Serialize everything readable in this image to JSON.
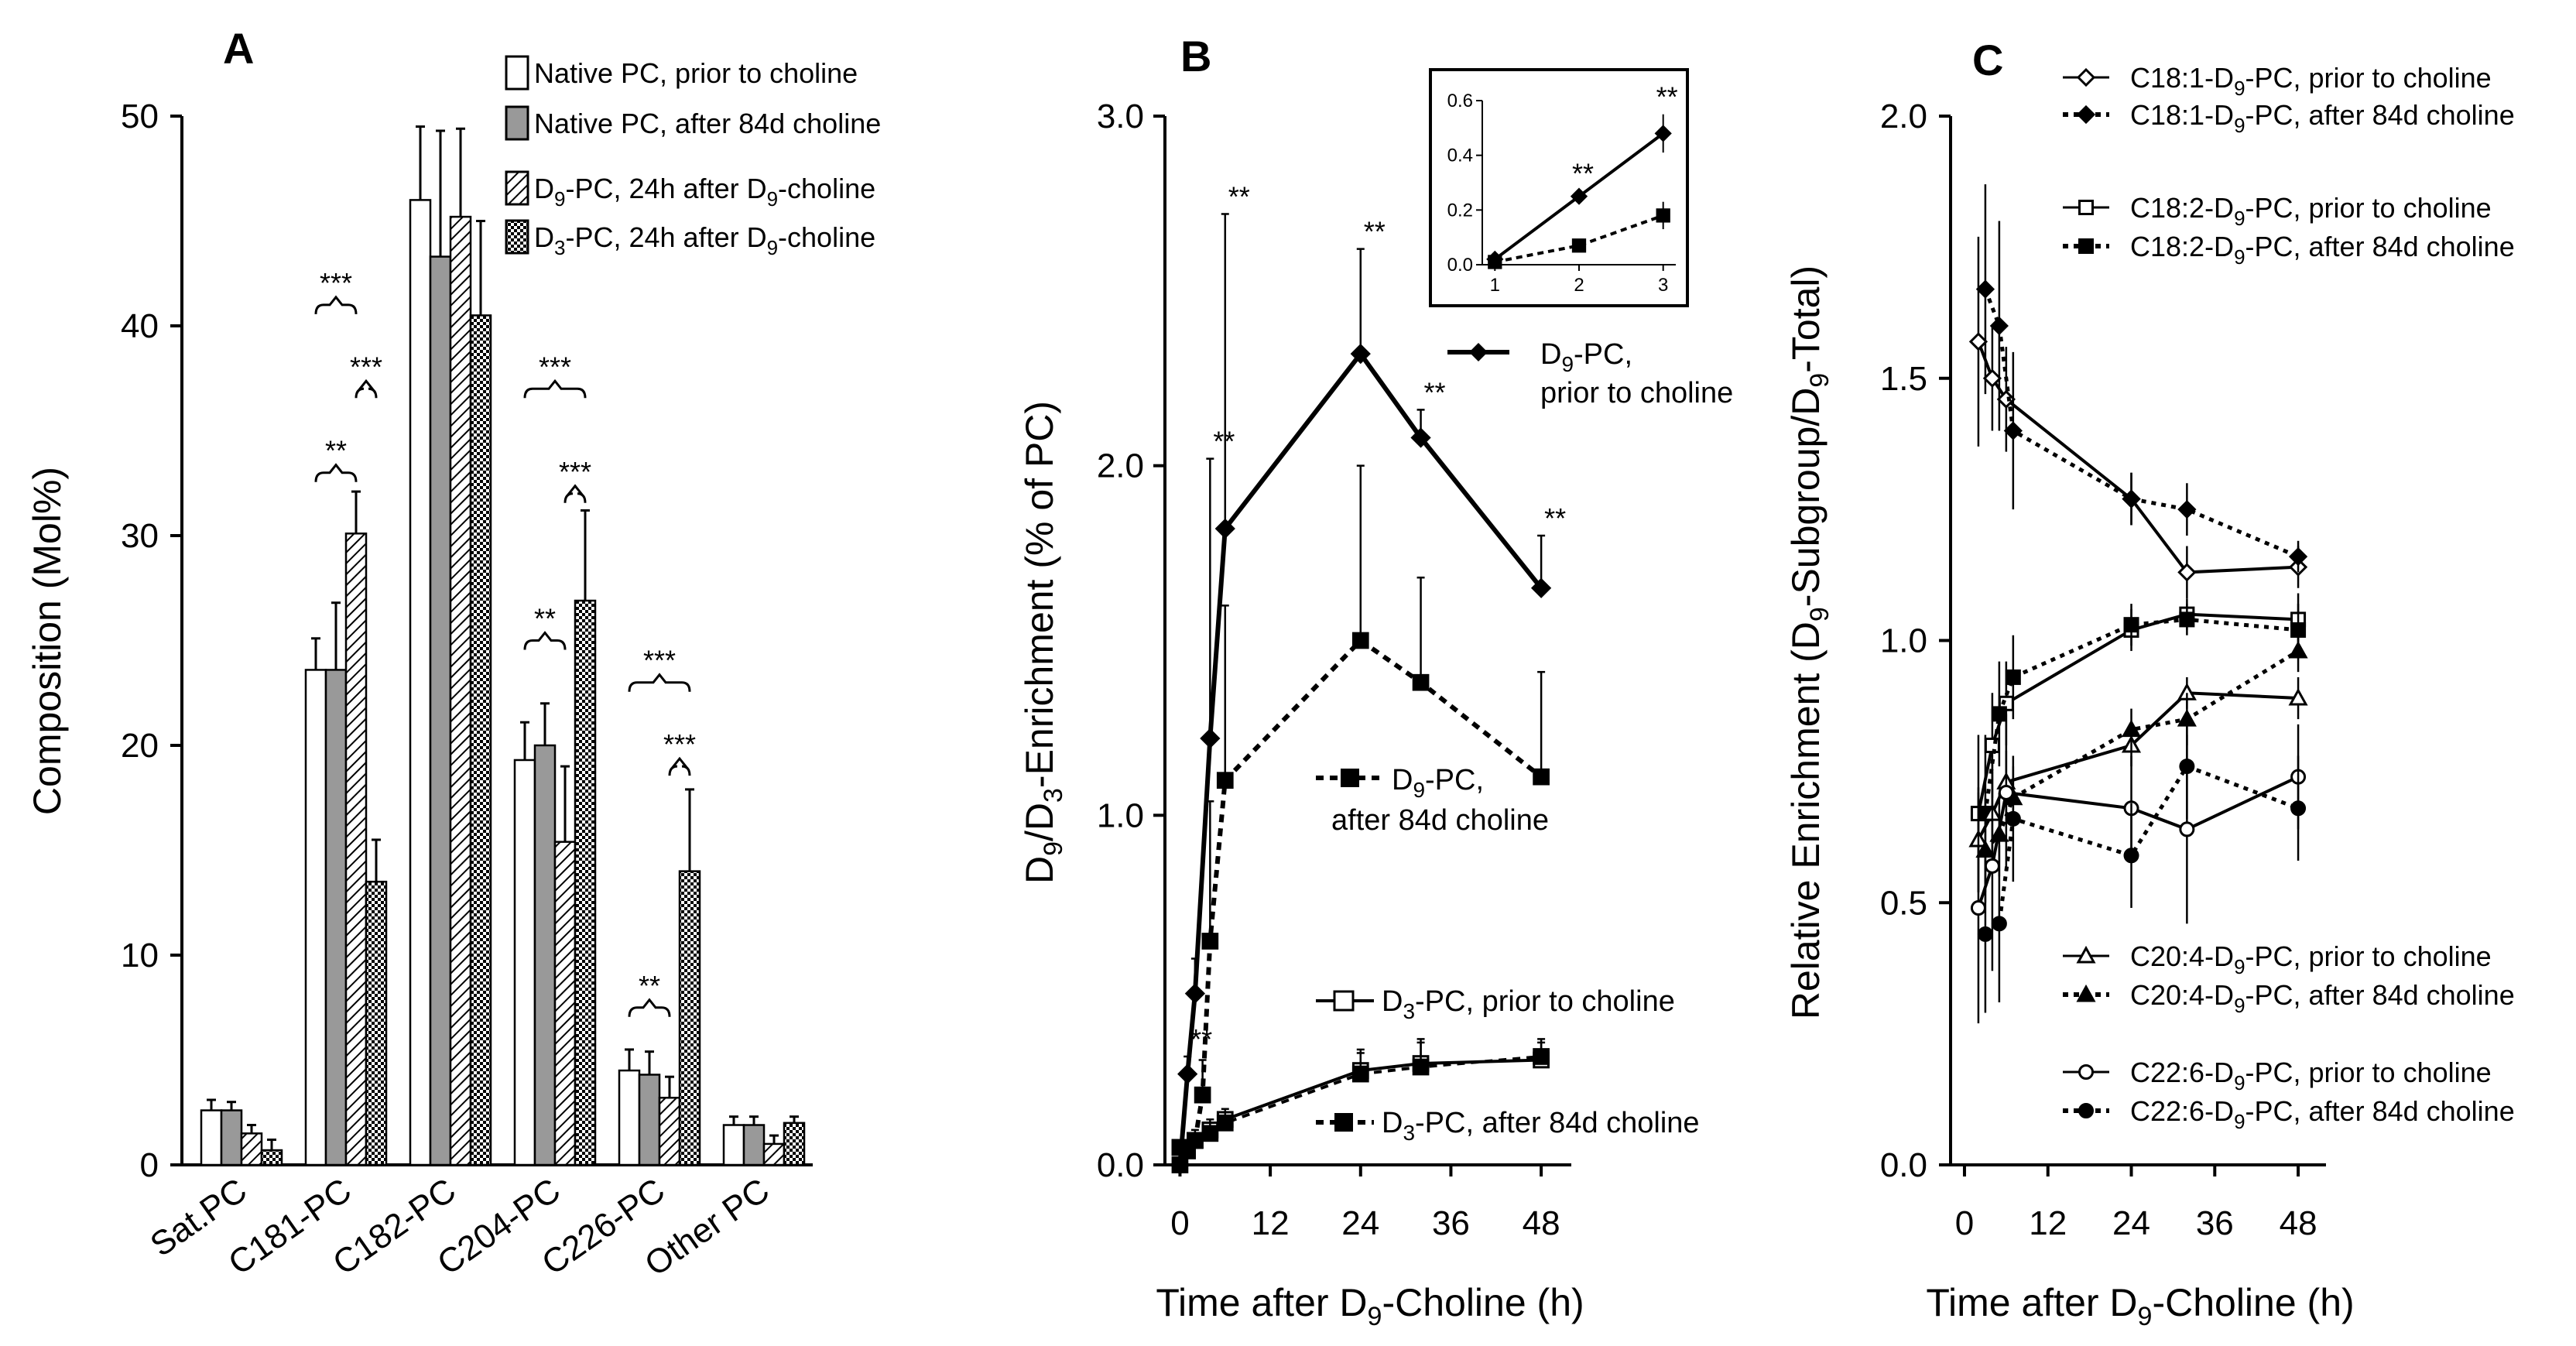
{
  "chart_data": [
    {
      "panel": "A",
      "type": "bar",
      "ylabel": "Composition (Mol%)",
      "ylim": [
        0,
        50
      ],
      "yticks": [
        0,
        10,
        20,
        30,
        40,
        50
      ],
      "categories": [
        "Sat.PC",
        "C181-PC",
        "C182-PC",
        "C204-PC",
        "C226-PC",
        "Other PC"
      ],
      "series": [
        {
          "name": "Native PC, prior to choline",
          "fill": "white",
          "values": [
            2.6,
            23.6,
            46.0,
            19.3,
            4.5,
            1.9
          ],
          "errors": [
            0.5,
            1.5,
            3.5,
            1.8,
            1.0,
            0.4
          ]
        },
        {
          "name": "Native PC, after 84d choline",
          "fill": "gray",
          "values": [
            2.6,
            23.6,
            43.3,
            20.0,
            4.3,
            1.9
          ],
          "errors": [
            0.4,
            3.2,
            6.0,
            2.0,
            1.1,
            0.4
          ]
        },
        {
          "name": "D9-PC, 24h after D9-choline",
          "fill": "hatch",
          "values": [
            1.5,
            30.1,
            45.2,
            15.4,
            3.2,
            1.0
          ],
          "errors": [
            0.4,
            2.0,
            4.2,
            3.6,
            1.0,
            0.4
          ]
        },
        {
          "name": "D3-PC, 24h after D9-choline",
          "fill": "check",
          "values": [
            0.7,
            13.5,
            40.5,
            26.9,
            14.0,
            2.0
          ],
          "errors": [
            0.5,
            2.0,
            4.5,
            4.3,
            3.9,
            0.3
          ]
        }
      ],
      "significance": [
        {
          "category": "C181-PC",
          "pair": [
            0,
            2
          ],
          "label": "***",
          "level": 41
        },
        {
          "category": "C181-PC",
          "pair": [
            2,
            3
          ],
          "label": "***",
          "level": 37
        },
        {
          "category": "C181-PC",
          "pair": [
            0,
            2
          ],
          "label": "**",
          "level": 33
        },
        {
          "category": "C204-PC",
          "pair": [
            0,
            3
          ],
          "label": "***",
          "level": 37
        },
        {
          "category": "C204-PC",
          "pair": [
            2,
            3
          ],
          "label": "***",
          "level": 32
        },
        {
          "category": "C204-PC",
          "pair": [
            0,
            2
          ],
          "label": "**",
          "level": 25
        },
        {
          "category": "C226-PC",
          "pair": [
            0,
            3
          ],
          "label": "***",
          "level": 23
        },
        {
          "category": "C226-PC",
          "pair": [
            2,
            3
          ],
          "label": "***",
          "level": 19
        },
        {
          "category": "C226-PC",
          "pair": [
            0,
            2
          ],
          "label": "**",
          "level": 7.5
        }
      ]
    },
    {
      "panel": "B",
      "type": "line",
      "xlabel": "Time after D9-Choline (h)",
      "ylabel": "D9/D3-Enrichment (% of PC)",
      "xlim": [
        -2,
        52
      ],
      "ylim": [
        0,
        3.0
      ],
      "xticks": [
        0,
        12,
        24,
        36,
        48
      ],
      "yticks": [
        "0.0",
        "1.0",
        "2.0",
        "3.0"
      ],
      "series": [
        {
          "name": "D9-PC, prior to choline",
          "marker": "diamond",
          "filled": true,
          "dash": false,
          "lineWidth": 6,
          "x": [
            0,
            1,
            2,
            4,
            6,
            24,
            32,
            48
          ],
          "y": [
            0.0,
            0.26,
            0.49,
            1.22,
            1.82,
            2.32,
            2.08,
            1.65
          ],
          "err": [
            0.0,
            0.05,
            0.1,
            0.8,
            0.9,
            0.3,
            0.08,
            0.15
          ],
          "sig": [
            "",
            "**",
            "",
            "**",
            "**",
            "**",
            "**",
            "**"
          ]
        },
        {
          "name": "D9-PC, after 84d choline",
          "marker": "square",
          "filled": true,
          "dash": true,
          "lineWidth": 6,
          "x": [
            0,
            1,
            2,
            3,
            4,
            6,
            24,
            32,
            48
          ],
          "y": [
            0.0,
            0.04,
            0.07,
            0.2,
            0.64,
            1.1,
            1.5,
            1.38,
            1.11
          ],
          "err": [
            0.0,
            0.02,
            0.03,
            0.1,
            0.4,
            0.5,
            0.5,
            0.3,
            0.3
          ]
        },
        {
          "name": "D3-PC, prior to choline",
          "marker": "square",
          "filled": false,
          "dash": false,
          "lineWidth": 4,
          "x": [
            0,
            2,
            4,
            6,
            24,
            32,
            48
          ],
          "y": [
            0.05,
            0.07,
            0.1,
            0.13,
            0.27,
            0.29,
            0.3
          ],
          "err": [
            0.02,
            0.02,
            0.03,
            0.03,
            0.06,
            0.07,
            0.05
          ]
        },
        {
          "name": "D3-PC, after 84d choline",
          "marker": "square",
          "filled": true,
          "dash": true,
          "lineWidth": 4,
          "x": [
            0,
            2,
            4,
            6,
            24,
            32,
            48
          ],
          "y": [
            0.05,
            0.07,
            0.09,
            0.12,
            0.26,
            0.28,
            0.31
          ],
          "err": [
            0.02,
            0.02,
            0.03,
            0.03,
            0.06,
            0.07,
            0.05
          ]
        }
      ],
      "inset": {
        "xlim": [
          0.85,
          3.15
        ],
        "ylim": [
          0,
          0.6
        ],
        "xticks": [
          1,
          2,
          3
        ],
        "yticks": [
          "0.0",
          "0.2",
          "0.4",
          "0.6"
        ],
        "series": [
          {
            "marker": "diamond",
            "filled": true,
            "dash": false,
            "x": [
              1,
              2,
              3
            ],
            "y": [
              0.02,
              0.25,
              0.48
            ],
            "err": [
              0.0,
              0.02,
              0.07
            ],
            "sig": [
              "",
              "**",
              "**"
            ]
          },
          {
            "marker": "square",
            "filled": true,
            "dash": true,
            "x": [
              1,
              2,
              3
            ],
            "y": [
              0.01,
              0.07,
              0.18
            ],
            "err": [
              0.0,
              0.01,
              0.05
            ]
          }
        ]
      }
    },
    {
      "panel": "C",
      "type": "line",
      "xlabel": "Time after D9-Choline (h)",
      "ylabel": "Relative Enrichment (D9-Subgroup/D9-Total)",
      "xlim": [
        -2,
        52
      ],
      "ylim": [
        0,
        2.0
      ],
      "xticks": [
        0,
        12,
        24,
        36,
        48
      ],
      "yticks": [
        "0.0",
        "0.5",
        "1.0",
        "1.5",
        "2.0"
      ],
      "series": [
        {
          "name": "C18:1-D9-PC, prior to choline",
          "marker": "diamond",
          "filled": false,
          "dash": false,
          "x": [
            2,
            4,
            6,
            24,
            32,
            48
          ],
          "y": [
            1.57,
            1.5,
            1.46,
            1.27,
            1.13,
            1.14
          ],
          "err": [
            0.2,
            0.1,
            0.1,
            0.05,
            0.05,
            0.04
          ]
        },
        {
          "name": "C18:1-D9-PC, after 84d choline",
          "marker": "diamond",
          "filled": true,
          "dash": true,
          "x": [
            3,
            5,
            7,
            24,
            32,
            48
          ],
          "y": [
            1.67,
            1.6,
            1.4,
            1.27,
            1.25,
            1.16
          ],
          "err": [
            0.2,
            0.2,
            0.15,
            0.05,
            0.05,
            0.03
          ]
        },
        {
          "name": "C18:2-D9-PC, prior to choline",
          "marker": "square",
          "filled": false,
          "dash": false,
          "x": [
            2,
            4,
            6,
            24,
            32,
            48
          ],
          "y": [
            0.67,
            0.8,
            0.88,
            1.02,
            1.05,
            1.04
          ],
          "err": [
            0.15,
            0.1,
            0.08,
            0.04,
            0.03,
            0.05
          ]
        },
        {
          "name": "C18:2-D9-PC, after 84d choline",
          "marker": "square",
          "filled": true,
          "dash": true,
          "x": [
            3,
            5,
            7,
            24,
            32,
            48
          ],
          "y": [
            0.67,
            0.86,
            0.93,
            1.03,
            1.04,
            1.02
          ],
          "err": [
            0.15,
            0.1,
            0.08,
            0.04,
            0.03,
            0.05
          ]
        },
        {
          "name": "C20:4-D9-PC, prior to choline",
          "marker": "triangle",
          "filled": false,
          "dash": false,
          "x": [
            2,
            4,
            6,
            24,
            32,
            48
          ],
          "y": [
            0.62,
            0.67,
            0.73,
            0.8,
            0.9,
            0.89
          ],
          "err": [
            0.1,
            0.08,
            0.06,
            0.04,
            0.03,
            0.04
          ]
        },
        {
          "name": "C20:4-D9-PC, after 84d choline",
          "marker": "triangle",
          "filled": true,
          "dash": true,
          "x": [
            3,
            5,
            7,
            24,
            32,
            48
          ],
          "y": [
            0.6,
            0.63,
            0.7,
            0.83,
            0.85,
            0.98
          ],
          "err": [
            0.1,
            0.08,
            0.06,
            0.04,
            0.05,
            0.04
          ]
        },
        {
          "name": "C22:6-D9-PC, prior to choline",
          "marker": "circle",
          "filled": false,
          "dash": false,
          "x": [
            2,
            4,
            6,
            24,
            32,
            48
          ],
          "y": [
            0.49,
            0.57,
            0.71,
            0.68,
            0.64,
            0.74
          ],
          "err": [
            0.22,
            0.2,
            0.15,
            0.1,
            0.18,
            0.1
          ]
        },
        {
          "name": "C22:6-D9-PC, after 84d choline",
          "marker": "circle",
          "filled": true,
          "dash": true,
          "x": [
            3,
            5,
            7,
            24,
            32,
            48
          ],
          "y": [
            0.44,
            0.46,
            0.66,
            0.59,
            0.76,
            0.68
          ],
          "err": [
            0.15,
            0.15,
            0.12,
            0.1,
            0.1,
            0.1
          ]
        }
      ]
    }
  ],
  "labels": {
    "panel_a": "A",
    "panel_b": "B",
    "panel_c": "C",
    "legend_a": [
      {
        "text": "Native PC, prior to choline"
      },
      {
        "text": "Native PC, after 84d choline"
      },
      {
        "pre": "D",
        "sub": "9",
        "post": "-PC, 24h after D",
        "sub2": "9",
        "post2": "-choline"
      },
      {
        "pre": "D",
        "sub": "3",
        "post": "-PC, 24h after D",
        "sub2": "9",
        "post2": "-choline"
      }
    ],
    "ylabel_a": "Composition (Mol%)",
    "ylabel_b": {
      "pre": "D",
      "sub": "9",
      "mid": "/D",
      "sub2": "3",
      "post": "-Enrichment (% of PC)"
    },
    "ylabel_c": {
      "pre": "Relative Enrichment (D",
      "sub": "9",
      "mid": "-Subgroup/D",
      "sub2": "9",
      "post": "-Total)"
    },
    "xlabel_bc": {
      "pre": "Time after D",
      "sub": "9",
      "post": "-Choline (h)"
    },
    "ann_b": [
      {
        "line1_pre": "D",
        "line1_sub": "9",
        "line1_post": "-PC,",
        "line2": "prior to choline"
      },
      {
        "line1_pre": "D",
        "line1_sub": "9",
        "line1_post": "-PC,",
        "line2": "after 84d choline"
      },
      {
        "line1_pre": "D",
        "line1_sub": "3",
        "line1_post": "-PC, prior to choline"
      },
      {
        "line1_pre": "D",
        "line1_sub": "3",
        "line1_post": "-PC, after 84d choline"
      }
    ],
    "legend_c": [
      {
        "pre": "C18:1-D",
        "sub": "9",
        "post": "-PC, prior to choline"
      },
      {
        "pre": "C18:1-D",
        "sub": "9",
        "post": "-PC, after 84d choline"
      },
      {
        "pre": "C18:2-D",
        "sub": "9",
        "post": "-PC, prior to choline"
      },
      {
        "pre": "C18:2-D",
        "sub": "9",
        "post": "-PC, after 84d choline"
      },
      {
        "pre": "C20:4-D",
        "sub": "9",
        "post": "-PC, prior to choline"
      },
      {
        "pre": "C20:4-D",
        "sub": "9",
        "post": "-PC, after 84d choline"
      },
      {
        "pre": "C22:6-D",
        "sub": "9",
        "post": "-PC, prior to choline"
      },
      {
        "pre": "C22:6-D",
        "sub": "9",
        "post": "-PC, after 84d choline"
      }
    ]
  }
}
